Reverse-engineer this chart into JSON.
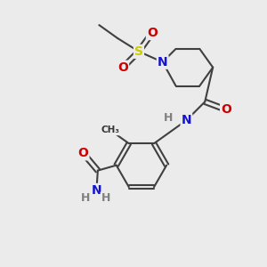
{
  "background_color": "#ebebeb",
  "bond_color": "#404040",
  "bond_width": 1.5,
  "atom_colors": {
    "N": "#1414cc",
    "O": "#cc0000",
    "S": "#cccc00",
    "H": "#808080",
    "C": "#000000"
  },
  "figsize": [
    3.0,
    3.0
  ],
  "dpi": 100
}
